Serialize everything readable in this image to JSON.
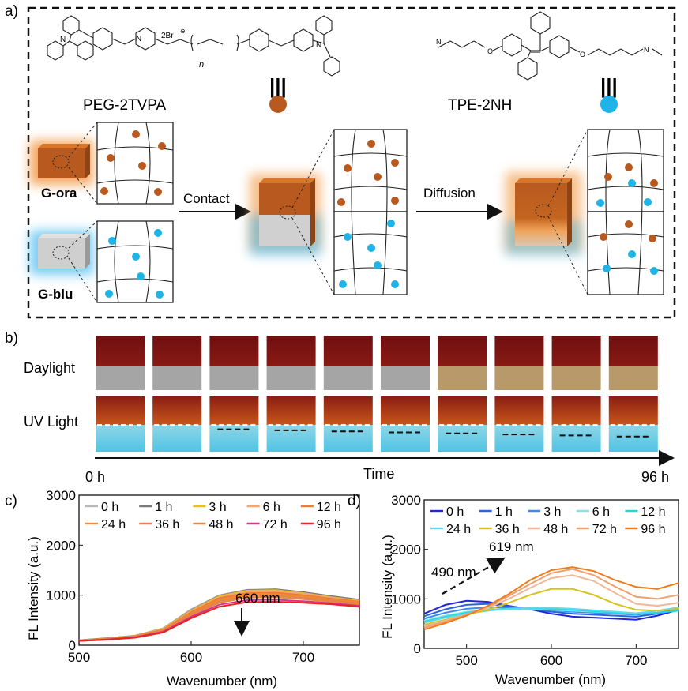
{
  "panel_a": {
    "label": "a)",
    "mol1_name": "PEG-2TVPA",
    "mol2_name": "TPE-2NH",
    "counterion": "2Br",
    "counterion_sup": "⊖",
    "repeat_n": "n",
    "gel_ora_label": "G-ora",
    "gel_blu_label": "G-blu",
    "step1_label": "Contact",
    "step2_label": "Diffusion",
    "dot_orange_color": "#b85a1f",
    "dot_blue_color": "#1fb4e8"
  },
  "panel_b": {
    "label": "b)",
    "row1_label": "Daylight",
    "row2_label": "UV Light",
    "axis_label": "Time",
    "start_label": "0 h",
    "end_label": "96 h",
    "frame_count": 10
  },
  "chart_data": [
    {
      "type": "line",
      "panel_label": "c)",
      "xlabel": "Wavenumber (nm)",
      "ylabel": "FL Intensity (a.u.)",
      "xlim": [
        500,
        750
      ],
      "ylim": [
        0,
        3000
      ],
      "x_ticks": [
        500,
        600,
        700
      ],
      "y_ticks": [
        0,
        1000,
        2000,
        3000
      ],
      "legend_position": "top",
      "annotation": "660 nm",
      "x": [
        500,
        525,
        550,
        575,
        600,
        625,
        650,
        675,
        700,
        725,
        750
      ],
      "series": [
        {
          "name": "0 h",
          "color": "#b8b8b8",
          "values": [
            100,
            140,
            190,
            340,
            720,
            1000,
            1110,
            1110,
            1050,
            970,
            900
          ]
        },
        {
          "name": "1 h",
          "color": "#7a7a7a",
          "values": [
            100,
            140,
            190,
            330,
            700,
            990,
            1100,
            1120,
            1060,
            980,
            910
          ]
        },
        {
          "name": "3 h",
          "color": "#e8c21a",
          "values": [
            95,
            135,
            185,
            330,
            690,
            980,
            1090,
            1100,
            1040,
            960,
            890
          ]
        },
        {
          "name": "6 h",
          "color": "#f2a56e",
          "values": [
            95,
            130,
            180,
            320,
            680,
            960,
            1070,
            1080,
            1030,
            950,
            880
          ]
        },
        {
          "name": "12 h",
          "color": "#ee7a33",
          "values": [
            95,
            130,
            180,
            310,
            660,
            940,
            1040,
            1050,
            1000,
            930,
            870
          ]
        },
        {
          "name": "24 h",
          "color": "#f08a2c",
          "values": [
            90,
            125,
            175,
            300,
            640,
            910,
            1010,
            1020,
            980,
            910,
            860
          ]
        },
        {
          "name": "36 h",
          "color": "#e87f50",
          "values": [
            90,
            125,
            170,
            290,
            620,
            880,
            980,
            990,
            950,
            890,
            840
          ]
        },
        {
          "name": "48 h",
          "color": "#e58a3a",
          "values": [
            90,
            120,
            165,
            280,
            600,
            850,
            950,
            960,
            920,
            870,
            820
          ]
        },
        {
          "name": "72 h",
          "color": "#d8338f",
          "values": [
            85,
            115,
            160,
            270,
            570,
            810,
            900,
            910,
            880,
            840,
            790
          ]
        },
        {
          "name": "96 h",
          "color": "#e8231f",
          "values": [
            85,
            110,
            150,
            255,
            540,
            770,
            860,
            870,
            850,
            820,
            770
          ]
        }
      ]
    },
    {
      "type": "line",
      "panel_label": "d)",
      "xlabel": "Wavenumber (nm)",
      "ylabel": "FL Intensity (a.u.)",
      "xlim": [
        450,
        750
      ],
      "ylim": [
        0,
        3000
      ],
      "x_ticks": [
        500,
        600,
        700
      ],
      "y_ticks": [
        0,
        1000,
        2000,
        3000
      ],
      "legend_position": "top",
      "annotation_left": "490 nm",
      "annotation_right": "619 nm",
      "x": [
        450,
        475,
        500,
        525,
        550,
        575,
        600,
        625,
        650,
        675,
        700,
        725,
        750
      ],
      "series": [
        {
          "name": "0 h",
          "color": "#1f27d6",
          "values": [
            700,
            880,
            960,
            940,
            860,
            790,
            700,
            640,
            620,
            600,
            580,
            660,
            780
          ]
        },
        {
          "name": "1 h",
          "color": "#2a62e6",
          "values": [
            650,
            790,
            880,
            900,
            850,
            800,
            740,
            700,
            680,
            660,
            640,
            700,
            780
          ]
        },
        {
          "name": "3 h",
          "color": "#3a8cf0",
          "values": [
            600,
            720,
            800,
            830,
            820,
            800,
            770,
            740,
            720,
            700,
            680,
            720,
            780
          ]
        },
        {
          "name": "6 h",
          "color": "#7fe6ea",
          "values": [
            560,
            660,
            740,
            780,
            790,
            790,
            780,
            760,
            740,
            720,
            700,
            760,
            830
          ]
        },
        {
          "name": "12 h",
          "color": "#22d7e0",
          "values": [
            540,
            640,
            720,
            770,
            800,
            810,
            800,
            780,
            750,
            720,
            690,
            720,
            760
          ]
        },
        {
          "name": "24 h",
          "color": "#5dd9ec",
          "values": [
            520,
            620,
            700,
            760,
            800,
            820,
            820,
            800,
            770,
            740,
            710,
            760,
            820
          ]
        },
        {
          "name": "36 h",
          "color": "#d8c21a",
          "values": [
            480,
            580,
            680,
            780,
            920,
            1080,
            1200,
            1200,
            1080,
            900,
            780,
            760,
            800
          ]
        },
        {
          "name": "48 h",
          "color": "#f0b898",
          "values": [
            450,
            560,
            680,
            820,
            1000,
            1220,
            1420,
            1480,
            1360,
            1120,
            900,
            860,
            920
          ]
        },
        {
          "name": "72 h",
          "color": "#f0a070",
          "values": [
            420,
            540,
            680,
            850,
            1060,
            1300,
            1520,
            1600,
            1480,
            1250,
            1040,
            1000,
            1080
          ]
        },
        {
          "name": "96 h",
          "color": "#ee7c1a",
          "values": [
            380,
            510,
            660,
            860,
            1100,
            1380,
            1580,
            1640,
            1560,
            1380,
            1240,
            1200,
            1320
          ]
        }
      ]
    }
  ]
}
